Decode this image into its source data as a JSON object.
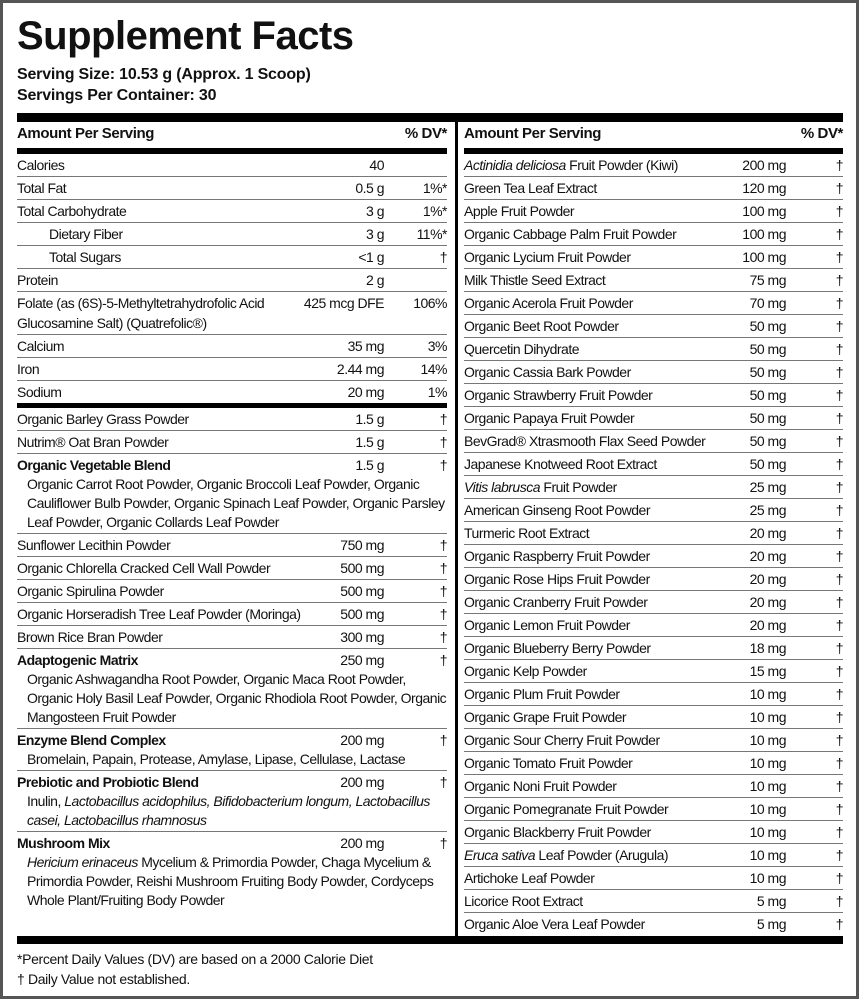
{
  "title": "Supplement Facts",
  "serving_size": "Serving Size: 10.53 g (Approx. 1 Scoop)",
  "servings_per_container": "Servings Per Container: 30",
  "header": {
    "amount": "Amount Per Serving",
    "dv": "% DV*"
  },
  "left_rows": [
    {
      "name": [
        {
          "t": "Calories"
        }
      ],
      "amount": "40",
      "dv": ""
    },
    {
      "name": [
        {
          "t": "Total Fat"
        }
      ],
      "amount": "0.5 g",
      "dv": "1%*"
    },
    {
      "name": [
        {
          "t": "Total Carbohydrate"
        }
      ],
      "amount": "3 g",
      "dv": "1%*"
    },
    {
      "name": [
        {
          "t": "Dietary Fiber"
        }
      ],
      "amount": "3 g",
      "dv": "11%*",
      "indent": true
    },
    {
      "name": [
        {
          "t": "Total Sugars"
        }
      ],
      "amount": "<1 g",
      "dv": "†",
      "indent": true
    },
    {
      "name": [
        {
          "t": "Protein"
        }
      ],
      "amount": "2 g",
      "dv": ""
    },
    {
      "name": [
        {
          "t": "Folate (as (6S)-5-Methyltetrahydrofolic Acid Glucosamine Salt) (Quatrefolic®)"
        }
      ],
      "amount": "425 mcg DFE",
      "dv": "106%",
      "narrow": true
    },
    {
      "name": [
        {
          "t": "Calcium"
        }
      ],
      "amount": "35 mg",
      "dv": "3%"
    },
    {
      "name": [
        {
          "t": "Iron"
        }
      ],
      "amount": "2.44 mg",
      "dv": "14%"
    },
    {
      "name": [
        {
          "t": "Sodium"
        }
      ],
      "amount": "20 mg",
      "dv": "1%",
      "thick": true
    },
    {
      "name": [
        {
          "t": "Organic Barley Grass Powder"
        }
      ],
      "amount": "1.5 g",
      "dv": "†"
    },
    {
      "name": [
        {
          "t": "Nutrim® Oat Bran Powder"
        }
      ],
      "amount": "1.5 g",
      "dv": "†"
    },
    {
      "name": [
        {
          "t": "Organic Vegetable Blend"
        }
      ],
      "amount": "1.5 g",
      "dv": "†",
      "bold": true,
      "desc": [
        {
          "t": "Organic Carrot Root Powder, Organic Broccoli Leaf Powder, Organic Cauliflower Bulb Powder, Organic Spinach Leaf Powder, Organic Parsley Leaf Powder, Organic Collards Leaf Powder"
        }
      ]
    },
    {
      "name": [
        {
          "t": "Sunflower Lecithin Powder"
        }
      ],
      "amount": "750 mg",
      "dv": "†"
    },
    {
      "name": [
        {
          "t": "Organic Chlorella Cracked Cell Wall Powder"
        }
      ],
      "amount": "500 mg",
      "dv": "†"
    },
    {
      "name": [
        {
          "t": "Organic Spirulina Powder"
        }
      ],
      "amount": "500 mg",
      "dv": "†"
    },
    {
      "name": [
        {
          "t": "Organic Horseradish Tree Leaf Powder (Moringa)"
        }
      ],
      "amount": "500 mg",
      "dv": "†"
    },
    {
      "name": [
        {
          "t": "Brown Rice Bran Powder"
        }
      ],
      "amount": "300 mg",
      "dv": "†"
    },
    {
      "name": [
        {
          "t": "Adaptogenic Matrix"
        }
      ],
      "amount": "250 mg",
      "dv": "†",
      "bold": true,
      "desc": [
        {
          "t": "Organic Ashwagandha Root Powder,  Organic Maca Root Powder, Organic Holy Basil Leaf Powder, Organic Rhodiola Root Powder, Organic Mangosteen Fruit Powder"
        }
      ]
    },
    {
      "name": [
        {
          "t": "Enzyme Blend Complex"
        }
      ],
      "amount": "200 mg",
      "dv": "†",
      "bold": true,
      "desc": [
        {
          "t": "Bromelain, Papain, Protease, Amylase, Lipase, Cellulase, Lactase"
        }
      ]
    },
    {
      "name": [
        {
          "t": "Prebiotic and Probiotic Blend"
        }
      ],
      "amount": "200 mg",
      "dv": "†",
      "bold": true,
      "desc": [
        {
          "t": "Inulin, "
        },
        {
          "t": "Lactobacillus acidophilus, Bifidobacterium longum, Lactobacillus casei, Lactobacillus rhamnosus",
          "i": true
        }
      ]
    },
    {
      "name": [
        {
          "t": "Mushroom Mix"
        }
      ],
      "amount": "200 mg",
      "dv": "†",
      "bold": true,
      "last": true,
      "desc": [
        {
          "t": "Hericium erinaceus",
          "i": true
        },
        {
          "t": " Mycelium & Primordia Powder, Chaga Mycelium & Primordia Powder, Reishi Mushroom Fruiting Body Powder, Cordyceps Whole Plant/Fruiting Body Powder"
        }
      ]
    }
  ],
  "right_rows": [
    {
      "name": [
        {
          "t": "Actinidia deliciosa",
          "i": true
        },
        {
          "t": " Fruit Powder (Kiwi)"
        }
      ],
      "amount": "200 mg",
      "dv": "†"
    },
    {
      "name": [
        {
          "t": "Green Tea Leaf Extract"
        }
      ],
      "amount": "120 mg",
      "dv": "†"
    },
    {
      "name": [
        {
          "t": "Apple Fruit Powder"
        }
      ],
      "amount": "100 mg",
      "dv": "†"
    },
    {
      "name": [
        {
          "t": "Organic Cabbage Palm Fruit Powder"
        }
      ],
      "amount": "100 mg",
      "dv": "†"
    },
    {
      "name": [
        {
          "t": "Organic Lycium Fruit Powder"
        }
      ],
      "amount": "100 mg",
      "dv": "†"
    },
    {
      "name": [
        {
          "t": "Milk Thistle Seed Extract"
        }
      ],
      "amount": "75 mg",
      "dv": "†"
    },
    {
      "name": [
        {
          "t": "Organic Acerola Fruit Powder"
        }
      ],
      "amount": "70 mg",
      "dv": "†"
    },
    {
      "name": [
        {
          "t": "Organic Beet Root Powder"
        }
      ],
      "amount": "50 mg",
      "dv": "†"
    },
    {
      "name": [
        {
          "t": "Quercetin Dihydrate"
        }
      ],
      "amount": "50 mg",
      "dv": "†"
    },
    {
      "name": [
        {
          "t": "Organic Cassia Bark Powder"
        }
      ],
      "amount": "50 mg",
      "dv": "†"
    },
    {
      "name": [
        {
          "t": "Organic Strawberry Fruit Powder"
        }
      ],
      "amount": "50 mg",
      "dv": "†"
    },
    {
      "name": [
        {
          "t": "Organic Papaya Fruit Powder"
        }
      ],
      "amount": "50 mg",
      "dv": "†"
    },
    {
      "name": [
        {
          "t": "BevGrad® Xtrasmooth Flax Seed Powder"
        }
      ],
      "amount": "50 mg",
      "dv": "†"
    },
    {
      "name": [
        {
          "t": "Japanese Knotweed Root Extract"
        }
      ],
      "amount": "50 mg",
      "dv": "†"
    },
    {
      "name": [
        {
          "t": "Vitis labrusca",
          "i": true
        },
        {
          "t": " Fruit Powder"
        }
      ],
      "amount": "25 mg",
      "dv": "†"
    },
    {
      "name": [
        {
          "t": "American Ginseng Root Powder"
        }
      ],
      "amount": "25 mg",
      "dv": "†"
    },
    {
      "name": [
        {
          "t": "Turmeric Root Extract"
        }
      ],
      "amount": "20 mg",
      "dv": "†"
    },
    {
      "name": [
        {
          "t": "Organic Raspberry Fruit Powder"
        }
      ],
      "amount": "20 mg",
      "dv": "†"
    },
    {
      "name": [
        {
          "t": "Organic Rose Hips Fruit Powder"
        }
      ],
      "amount": "20 mg",
      "dv": "†"
    },
    {
      "name": [
        {
          "t": "Organic Cranberry Fruit Powder"
        }
      ],
      "amount": "20 mg",
      "dv": "†"
    },
    {
      "name": [
        {
          "t": "Organic Lemon Fruit Powder"
        }
      ],
      "amount": "20 mg",
      "dv": "†"
    },
    {
      "name": [
        {
          "t": "Organic Blueberry Berry Powder"
        }
      ],
      "amount": "18 mg",
      "dv": "†"
    },
    {
      "name": [
        {
          "t": "Organic Kelp Powder"
        }
      ],
      "amount": "15 mg",
      "dv": "†"
    },
    {
      "name": [
        {
          "t": "Organic Plum Fruit Powder"
        }
      ],
      "amount": "10 mg",
      "dv": "†"
    },
    {
      "name": [
        {
          "t": "Organic Grape Fruit Powder"
        }
      ],
      "amount": "10 mg",
      "dv": "†"
    },
    {
      "name": [
        {
          "t": "Organic Sour Cherry Fruit Powder"
        }
      ],
      "amount": "10 mg",
      "dv": "†"
    },
    {
      "name": [
        {
          "t": "Organic Tomato Fruit Powder"
        }
      ],
      "amount": "10 mg",
      "dv": "†"
    },
    {
      "name": [
        {
          "t": "Organic Noni Fruit Powder"
        }
      ],
      "amount": "10 mg",
      "dv": "†"
    },
    {
      "name": [
        {
          "t": "Organic Pomegranate Fruit Powder"
        }
      ],
      "amount": "10 mg",
      "dv": "†"
    },
    {
      "name": [
        {
          "t": "Organic Blackberry Fruit Powder"
        }
      ],
      "amount": "10 mg",
      "dv": "†"
    },
    {
      "name": [
        {
          "t": "Eruca sativa",
          "i": true
        },
        {
          "t": " Leaf Powder (Arugula)"
        }
      ],
      "amount": "10 mg",
      "dv": "†"
    },
    {
      "name": [
        {
          "t": "Artichoke Leaf Powder"
        }
      ],
      "amount": "10 mg",
      "dv": "†"
    },
    {
      "name": [
        {
          "t": "Licorice Root Extract"
        }
      ],
      "amount": "5 mg",
      "dv": "†"
    },
    {
      "name": [
        {
          "t": "Organic Aloe Vera Leaf Powder"
        }
      ],
      "amount": "5 mg",
      "dv": "†",
      "last": true
    }
  ],
  "footnotes": [
    "*Percent Daily Values (DV) are based on a 2000 Calorie Diet",
    "† Daily Value not established."
  ]
}
